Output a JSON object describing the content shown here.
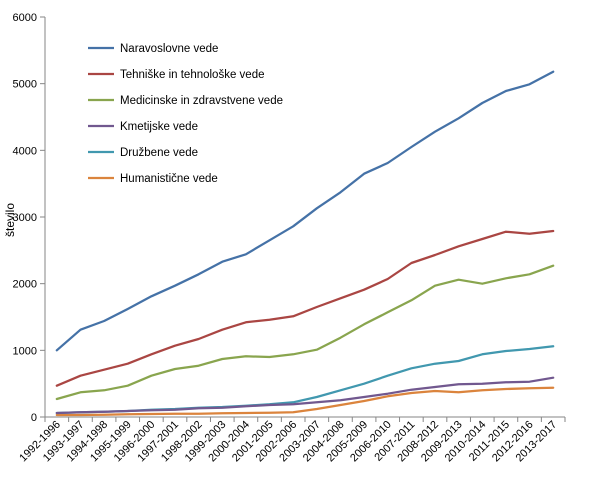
{
  "chart_data": {
    "type": "line",
    "title": "",
    "xlabel": "",
    "ylabel": "število",
    "ylim": [
      0,
      6000
    ],
    "yticks": [
      0,
      1000,
      2000,
      3000,
      4000,
      5000,
      6000
    ],
    "ytick_labels": [
      "0",
      "1000",
      "2000",
      "3000",
      "4000",
      "5000",
      "6000"
    ],
    "grid": false,
    "legend_position": "top-left",
    "categories": [
      "1992-1996",
      "1993-1997",
      "1994-1998",
      "1995-1999",
      "1996-2000",
      "1997-2001",
      "1998-2002",
      "1999-2003",
      "2000-2004",
      "2001-2005",
      "2002-2006",
      "2003-2007",
      "2004-2008",
      "2005-2009",
      "2006-2010",
      "2007-2011",
      "2008-2012",
      "2009-2013",
      "2010-2014",
      "2011-2015",
      "2012-2016",
      "2013-2017"
    ],
    "series": [
      {
        "name": "Naravoslovne vede",
        "color": "#4572A7",
        "values": [
          1000,
          1310,
          1440,
          1620,
          1810,
          1970,
          2140,
          2330,
          2440,
          2650,
          2860,
          3130,
          3370,
          3650,
          3810,
          4050,
          4280,
          4480,
          4710,
          4890,
          4990,
          5180
        ]
      },
      {
        "name": "Tehniške in tehnološke vede",
        "color": "#AA4643",
        "values": [
          470,
          620,
          710,
          800,
          940,
          1070,
          1170,
          1310,
          1420,
          1460,
          1510,
          1650,
          1780,
          1910,
          2070,
          2310,
          2430,
          2560,
          2670,
          2780,
          2750,
          2790
        ]
      },
      {
        "name": "Medicinske in zdravstvene vede",
        "color": "#89A54E",
        "values": [
          270,
          370,
          400,
          470,
          620,
          720,
          770,
          870,
          910,
          900,
          940,
          1010,
          1190,
          1390,
          1570,
          1750,
          1970,
          2060,
          2000,
          2080,
          2140,
          2270
        ]
      },
      {
        "name": "Kmetijske vede",
        "color": "#71588F",
        "values": [
          60,
          70,
          80,
          90,
          100,
          110,
          130,
          140,
          160,
          180,
          190,
          220,
          250,
          300,
          350,
          410,
          450,
          490,
          500,
          520,
          530,
          590
        ]
      },
      {
        "name": "Družbene vede",
        "color": "#4198AF",
        "values": [
          60,
          70,
          80,
          90,
          110,
          120,
          140,
          150,
          170,
          190,
          220,
          300,
          400,
          500,
          620,
          730,
          800,
          840,
          940,
          990,
          1020,
          1060
        ]
      },
      {
        "name": "Humanistične vede",
        "color": "#DB843D",
        "values": [
          30,
          30,
          35,
          40,
          45,
          50,
          50,
          55,
          60,
          65,
          70,
          120,
          180,
          240,
          310,
          360,
          390,
          370,
          400,
          420,
          430,
          440
        ]
      }
    ]
  }
}
